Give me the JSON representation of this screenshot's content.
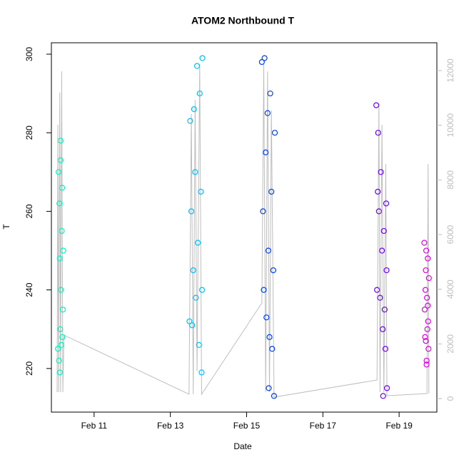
{
  "chart_data": {
    "type": "scatter",
    "title": "ATOM2 Northbound T",
    "x_label": "Date",
    "y_label": "T",
    "xlim": [
      9.88,
      19.99
    ],
    "xticks": [
      {
        "value": 11,
        "label": "Feb 11"
      },
      {
        "value": 13,
        "label": "Feb 13"
      },
      {
        "value": 15,
        "label": "Feb 15"
      },
      {
        "value": 17,
        "label": "Feb 17"
      },
      {
        "value": 19,
        "label": "Feb 19"
      }
    ],
    "ylim": [
      208.9,
      302.9
    ],
    "yticks": [
      220,
      240,
      260,
      280,
      300
    ],
    "y2lim": [
      -496,
      13017
    ],
    "y2ticks": [
      0,
      2000,
      4000,
      6000,
      8000,
      10000,
      12000
    ],
    "y2_color": "#bebebe",
    "series": [
      {
        "color": "#00f5c0",
        "x": [
          10.05,
          10.07,
          10.08,
          10.09,
          10.1,
          10.11,
          10.12,
          10.13,
          10.14,
          10.15,
          10.16,
          10.17,
          10.18,
          10.19,
          10.1,
          10.12
        ],
        "values": [
          225,
          270,
          222,
          262,
          248,
          230,
          278,
          240,
          226,
          255,
          266,
          228,
          235,
          250,
          219,
          273
        ]
      },
      {
        "color": "#00bfff",
        "x": [
          13.5,
          13.52,
          13.55,
          13.57,
          13.6,
          13.62,
          13.65,
          13.67,
          13.7,
          13.72,
          13.75,
          13.77,
          13.8,
          13.82,
          13.84,
          13.83
        ],
        "values": [
          232,
          283,
          260,
          231,
          245,
          286,
          270,
          238,
          297,
          252,
          226,
          290,
          265,
          219,
          299,
          240
        ]
      },
      {
        "color": "#0040ff",
        "x": [
          15.4,
          15.43,
          15.45,
          15.47,
          15.5,
          15.52,
          15.55,
          15.57,
          15.6,
          15.62,
          15.65,
          15.67,
          15.7,
          15.72,
          15.74,
          15.58
        ],
        "values": [
          298,
          260,
          240,
          299,
          275,
          233,
          285,
          250,
          228,
          290,
          265,
          225,
          245,
          213,
          280,
          215
        ]
      },
      {
        "color": "#7000ff",
        "x": [
          18.4,
          18.42,
          18.45,
          18.47,
          18.5,
          18.52,
          18.55,
          18.57,
          18.6,
          18.62,
          18.64,
          18.66,
          18.68,
          18.67,
          18.44,
          18.58
        ],
        "values": [
          287,
          240,
          280,
          260,
          238,
          270,
          250,
          230,
          255,
          235,
          225,
          262,
          215,
          245,
          265,
          213
        ]
      },
      {
        "color": "#e000e8",
        "x": [
          19.66,
          19.68,
          19.7,
          19.72,
          19.73,
          19.75,
          19.76,
          19.77,
          19.69,
          19.74,
          19.71,
          19.67,
          19.78,
          19.72,
          19.7,
          19.75
        ],
        "values": [
          252,
          228,
          245,
          222,
          238,
          248,
          232,
          225,
          240,
          230,
          250,
          235,
          243,
          221,
          227,
          236
        ]
      },
      {
        "type": "line",
        "axis": "y2",
        "color": "#bebebe",
        "x": [
          10.03,
          10.05,
          10.07,
          10.1,
          10.12,
          10.15,
          10.18,
          10.21,
          13.49,
          13.55,
          13.6,
          13.65,
          13.7,
          13.77,
          13.82,
          15.4,
          15.45,
          15.5,
          15.55,
          15.6,
          15.65,
          15.72,
          18.42,
          18.47,
          18.5,
          18.55,
          18.6,
          18.65,
          18.68,
          19.73,
          19.76,
          19.78
        ],
        "values": [
          235,
          10018,
          235,
          11192,
          235,
          11975,
          235,
          2322,
          157,
          10410,
          157,
          10931,
          1000,
          12236,
          157,
          3496,
          12236,
          235,
          11975,
          235,
          10540,
          52,
          678,
          10801,
          235,
          10018,
          235,
          8583,
          104,
          183,
          8583,
          183
        ]
      }
    ]
  }
}
